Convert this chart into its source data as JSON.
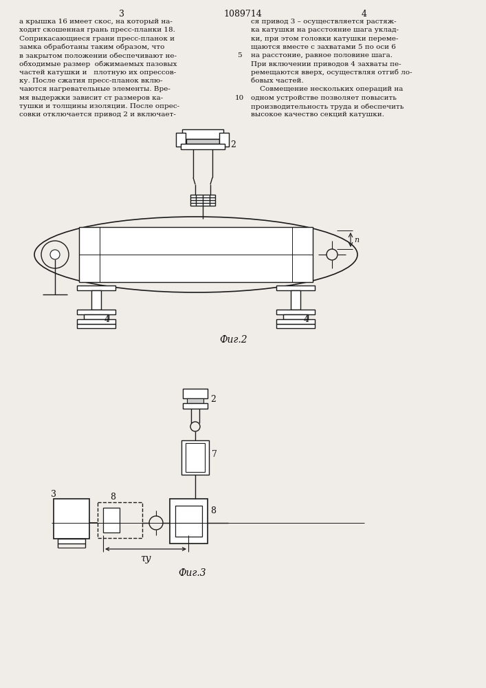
{
  "page_width": 7.07,
  "page_height": 10.0,
  "bg_color": "#f0ede8",
  "line_color": "#1a1a1a",
  "text_color": "#111111",
  "page_number_left": "3",
  "page_number_center": "1089714",
  "page_number_right": "4",
  "col1_text": [
    "а крышка 16 имеет скос, на который на-",
    "ходит скошенная грань пресс-планки 18.",
    "Соприкасающиеся грани пресс-планок и",
    "замка обработаны таким образом, что",
    "в закрытом положении обеспечивают не-",
    "обходимые размер  обжимаемых пазовых",
    "частей катушки и   плотную их опрессов-",
    "ку. После сжатия пресс-планок вклю-",
    "чаются нагревательные элементы. Вре-",
    "мя выдержки зависит ст размеров ка-",
    "тушки и толщины изоляции. После опрес-",
    "совки отключается привод 2 и включает-"
  ],
  "col2_text": [
    "ся привод 3 – осуществляется растяж-",
    "ка катушки на расстояние шага уклад-",
    "ки, при этом головки катушки переме-",
    "щаются вместе с захватами 5 по оси 6",
    "на расстоние, равное половине шага.",
    "При включении приводов 4 захваты пе-",
    "ремещаются вверх, осуществляя отгиб ло-",
    "бовых частей.",
    "    Совмещение нескольких операций на",
    "одном устройстве позволяет повысить",
    "производительность труда и обеспечить",
    "высокое качество секций катушки."
  ],
  "fig2_label": "Фиг.2",
  "fig3_label": "Фиг.3",
  "label_2_fig2": "2",
  "label_4_left": "4",
  "label_4_right": "4",
  "label_n": "n",
  "label_3": "3",
  "label_8_left": "8",
  "label_8_right": "8",
  "label_7": "7",
  "label_tau": "τу",
  "label_2_fig3": "2"
}
